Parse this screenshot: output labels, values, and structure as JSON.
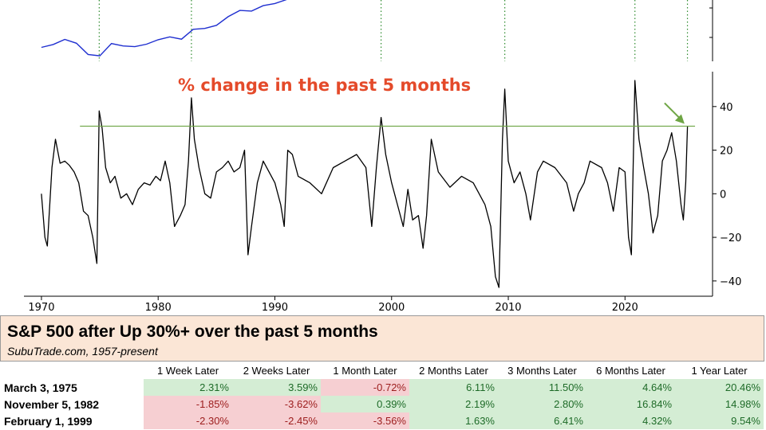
{
  "chart_data": [
    {
      "type": "line",
      "title": "",
      "yscale": "log",
      "series": [
        {
          "color": "#1f2fd0",
          "x": [
            1970.0,
            1971.0,
            1972.0,
            1973.0,
            1974.0,
            1975.0,
            1976.0,
            1977.0,
            1978.0,
            1979.0,
            1980.0,
            1981.0,
            1982.0,
            1983.0,
            1984.0,
            1985.0,
            1986.0,
            1987.0,
            1988.0,
            1989.0,
            1990.0,
            1991.0
          ],
          "y": [
            92,
            100,
            116,
            104,
            75,
            72,
            103,
            96,
            94,
            101,
            115,
            125,
            117,
            156,
            160,
            175,
            225,
            270,
            265,
            310,
            330,
            370
          ]
        }
      ],
      "event_markers_x": [
        1974.95,
        1982.85,
        1999.1,
        2009.7,
        2020.85,
        2025.35
      ]
    },
    {
      "type": "line",
      "annotation": "% change in the past 5 months",
      "xlim": [
        1968.5,
        2027.5
      ],
      "ylim": [
        -47,
        56
      ],
      "xticks": [
        1970,
        1980,
        1990,
        2000,
        2010,
        2020
      ],
      "yticks": [
        -40,
        -20,
        0,
        20,
        40
      ],
      "threshold": 31,
      "threshold_color": "#6ea544",
      "arrow_color": "#6ea544",
      "annotation_color": "#e44a2a",
      "series": [
        {
          "color": "#000000",
          "x": [
            1970.0,
            1970.3,
            1970.5,
            1970.9,
            1971.2,
            1971.6,
            1972.0,
            1972.4,
            1972.8,
            1973.2,
            1973.6,
            1974.0,
            1974.4,
            1974.75,
            1974.95,
            1975.2,
            1975.5,
            1975.9,
            1976.3,
            1976.8,
            1977.3,
            1977.8,
            1978.3,
            1978.8,
            1979.3,
            1979.8,
            1980.2,
            1980.6,
            1981.0,
            1981.4,
            1981.9,
            1982.3,
            1982.6,
            1982.85,
            1983.1,
            1983.5,
            1984.0,
            1984.5,
            1985.0,
            1985.5,
            1986.0,
            1986.5,
            1987.0,
            1987.4,
            1987.7,
            1988.0,
            1988.5,
            1989.0,
            1989.5,
            1990.0,
            1990.5,
            1990.8,
            1991.1,
            1991.5,
            1992.0,
            1993.0,
            1994.0,
            1995.0,
            1996.0,
            1997.0,
            1997.8,
            1998.3,
            1998.7,
            1999.1,
            1999.5,
            2000.0,
            2000.5,
            2001.0,
            2001.4,
            2001.8,
            2002.3,
            2002.7,
            2003.0,
            2003.4,
            2004.0,
            2005.0,
            2006.0,
            2007.0,
            2007.5,
            2008.0,
            2008.5,
            2008.9,
            2009.2,
            2009.5,
            2009.7,
            2010.0,
            2010.5,
            2011.0,
            2011.5,
            2011.9,
            2012.5,
            2013.0,
            2014.0,
            2015.0,
            2015.6,
            2016.0,
            2016.5,
            2017.0,
            2018.0,
            2018.5,
            2019.0,
            2019.5,
            2020.0,
            2020.3,
            2020.55,
            2020.85,
            2021.2,
            2021.6,
            2022.0,
            2022.4,
            2022.8,
            2023.2,
            2023.6,
            2024.0,
            2024.4,
            2024.8,
            2025.0,
            2025.2,
            2025.35
          ],
          "y": [
            0,
            -20,
            -24,
            12,
            25,
            14,
            15,
            13,
            10,
            5,
            -8,
            -10,
            -20,
            -32,
            38,
            30,
            12,
            5,
            8,
            -2,
            0,
            -5,
            2,
            5,
            4,
            8,
            6,
            15,
            5,
            -15,
            -10,
            -5,
            15,
            44,
            25,
            12,
            0,
            -2,
            10,
            12,
            15,
            10,
            12,
            20,
            -28,
            -15,
            5,
            15,
            10,
            5,
            -5,
            -15,
            20,
            18,
            8,
            5,
            0,
            12,
            15,
            18,
            12,
            -15,
            12,
            35,
            18,
            5,
            -5,
            -15,
            2,
            -12,
            -10,
            -25,
            -10,
            25,
            10,
            3,
            8,
            5,
            0,
            -5,
            -15,
            -38,
            -43,
            25,
            48,
            15,
            5,
            10,
            0,
            -12,
            10,
            15,
            12,
            5,
            -8,
            0,
            5,
            15,
            12,
            5,
            -8,
            12,
            10,
            -20,
            -28,
            52,
            25,
            12,
            0,
            -18,
            -10,
            15,
            20,
            28,
            15,
            -5,
            -12,
            5,
            31
          ]
        }
      ]
    }
  ],
  "table": {
    "title": "S&P 500 after Up 30%+ over the past 5 months",
    "subtitle": "SubuTrade.com, 1957-present",
    "pos_bg": "#d4edd4",
    "neg_bg": "#f6cfd2",
    "columns": [
      "",
      "1 Week Later",
      "2 Weeks Later",
      "1 Month Later",
      "2 Months Later",
      "3 Months Later",
      "6 Months Later",
      "1 Year Later"
    ],
    "rows": [
      {
        "date": "March 3, 1975",
        "values": [
          "2.31%",
          "3.59%",
          "-0.72%",
          "6.11%",
          "11.50%",
          "4.64%",
          "20.46%"
        ]
      },
      {
        "date": "November 5, 1982",
        "values": [
          "-1.85%",
          "-3.62%",
          "0.39%",
          "2.19%",
          "2.80%",
          "16.84%",
          "14.98%"
        ]
      },
      {
        "date": "February 1, 1999",
        "values": [
          "-2.30%",
          "-2.45%",
          "-3.56%",
          "1.63%",
          "6.41%",
          "4.32%",
          "9.54%"
        ]
      }
    ]
  }
}
